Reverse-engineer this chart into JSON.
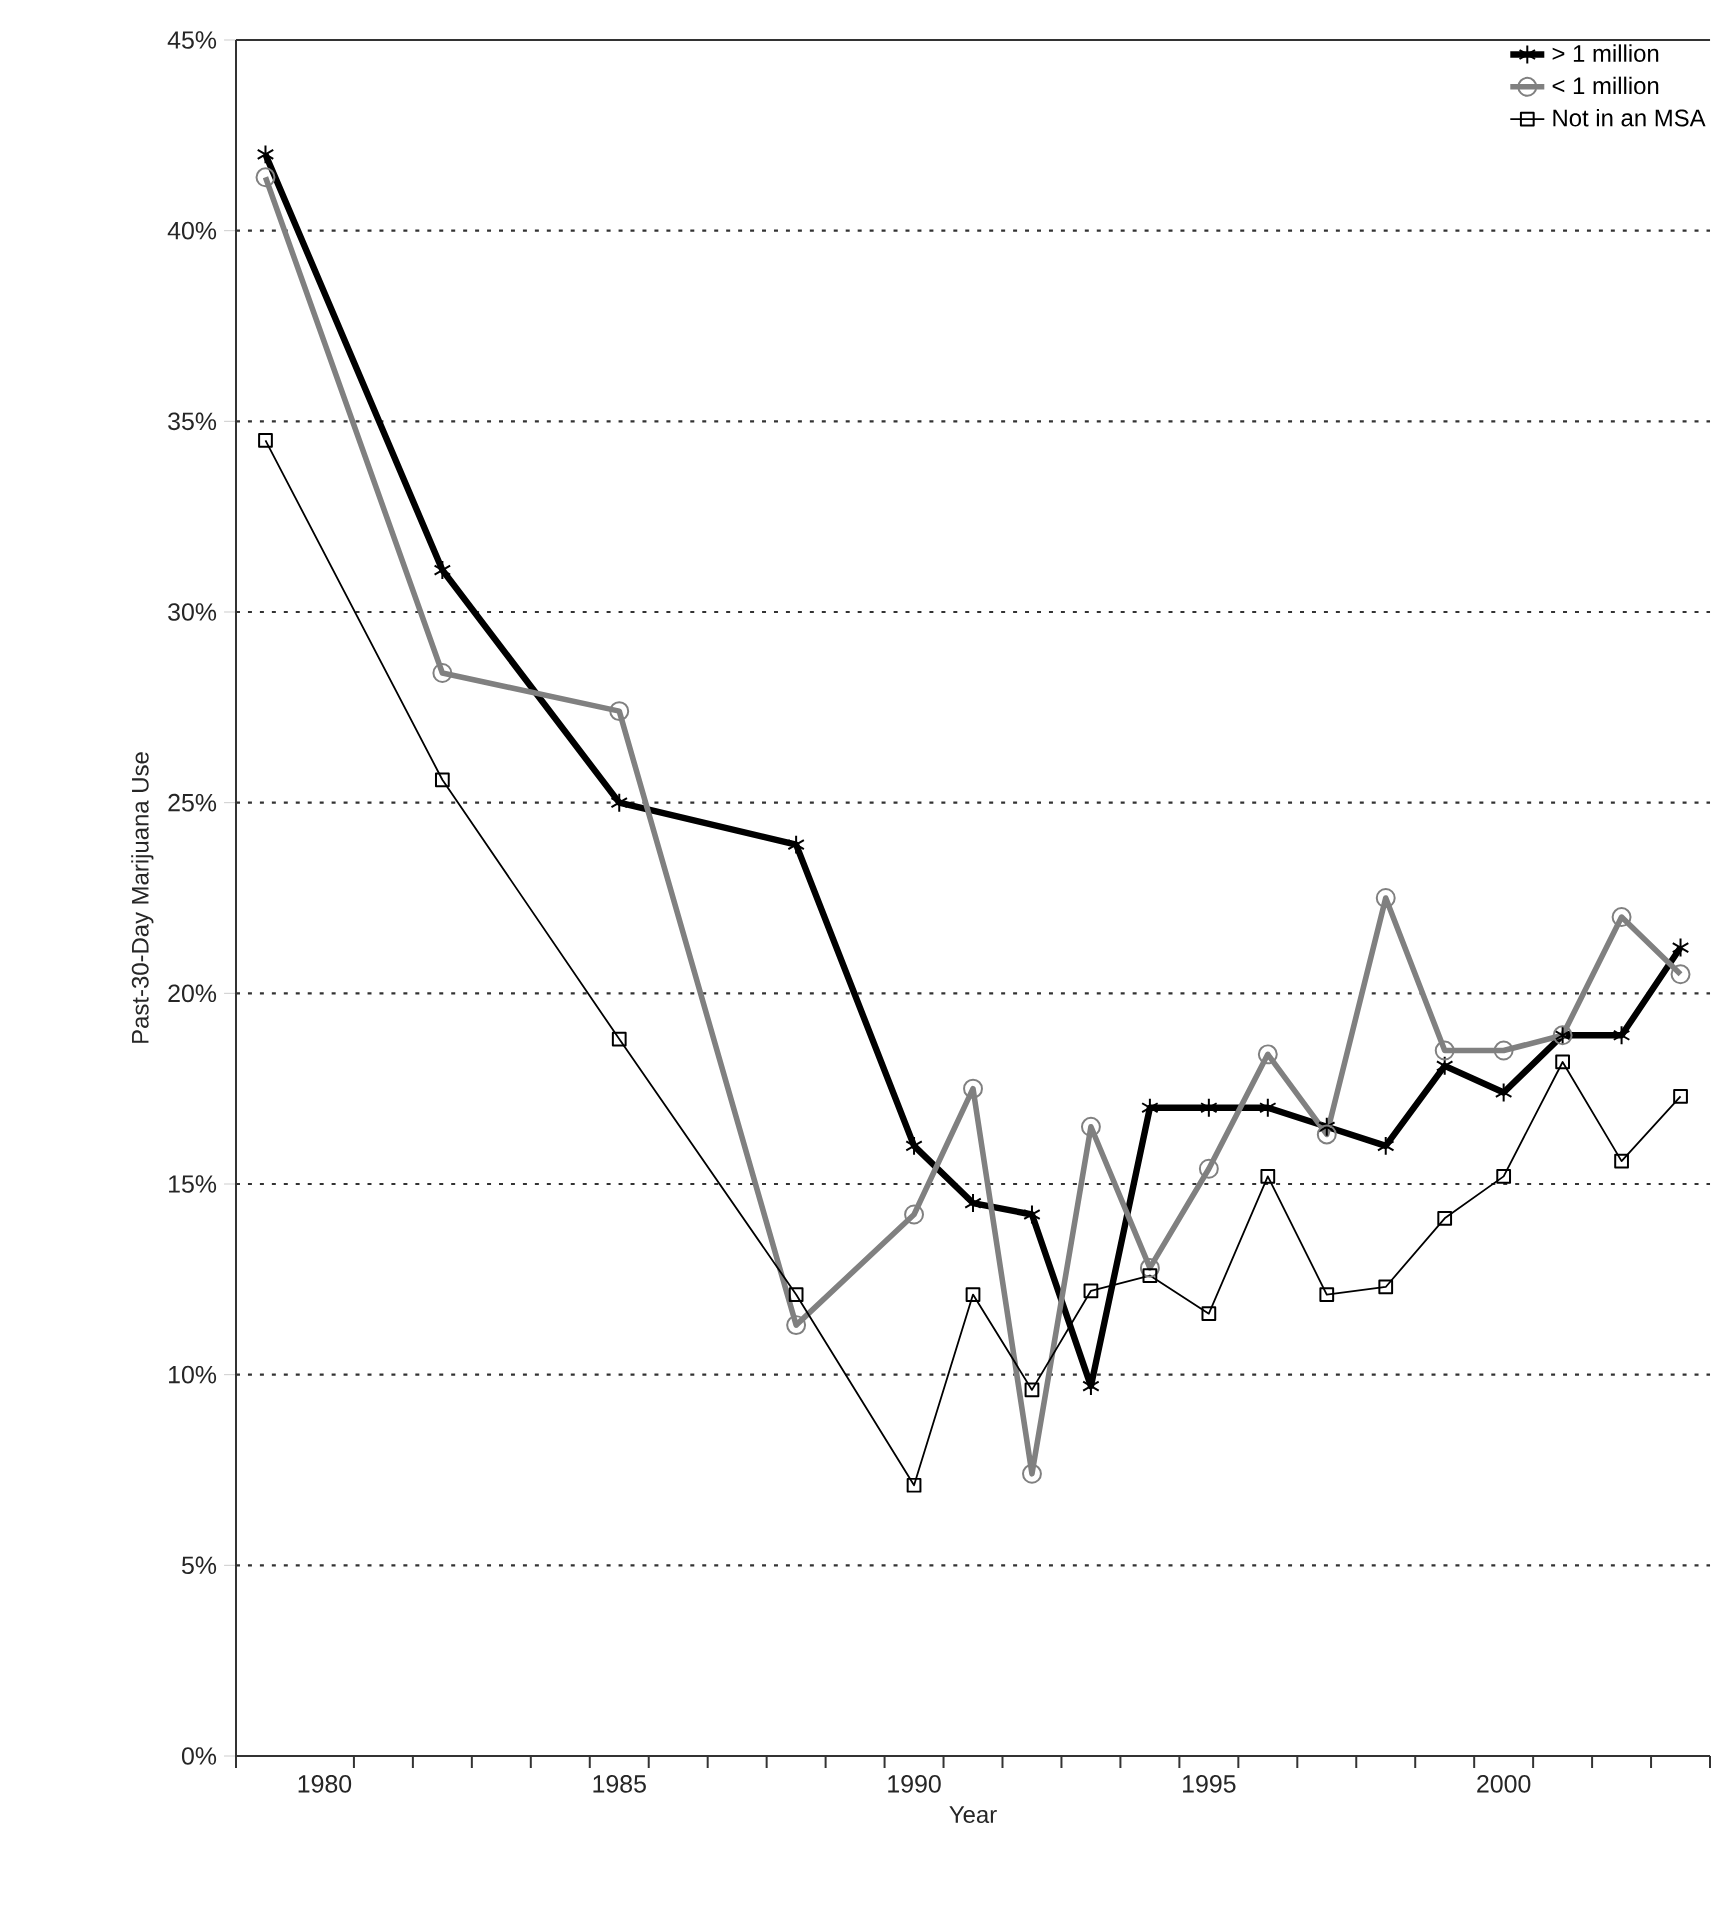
{
  "chart_data": {
    "type": "line",
    "xlabel": "Year",
    "ylabel": "Past-30-Day Marijuana Use",
    "x": [
      1979,
      1982,
      1985,
      1988,
      1990,
      1991,
      1992,
      1993,
      1994,
      1995,
      1996,
      1997,
      1998,
      1999,
      2000,
      2001,
      2002,
      2003
    ],
    "series": [
      {
        "name": "> 1 million",
        "color": "#000000",
        "marker": "cross",
        "values": [
          42.0,
          31.1,
          25.0,
          23.9,
          16.0,
          14.5,
          14.2,
          9.7,
          17.0,
          17.0,
          17.0,
          16.5,
          16.0,
          18.1,
          17.4,
          18.9,
          18.9,
          21.2
        ]
      },
      {
        "name": "< 1 million",
        "color": "#808080",
        "marker": "circle",
        "values": [
          41.4,
          28.4,
          27.4,
          11.3,
          14.2,
          17.5,
          7.4,
          16.5,
          12.8,
          15.4,
          18.4,
          16.3,
          22.5,
          18.5,
          18.5,
          18.9,
          22.0,
          20.5
        ]
      },
      {
        "name": "Not in an MSA",
        "color": "#000000",
        "marker": "square",
        "values": [
          34.5,
          25.6,
          18.8,
          12.1,
          7.1,
          12.1,
          9.6,
          12.2,
          12.6,
          11.6,
          15.2,
          12.1,
          12.3,
          14.1,
          15.2,
          18.2,
          15.6,
          17.3
        ]
      }
    ],
    "xlim": [
      1978.5,
      2003.5
    ],
    "xticks": [
      {
        "value": 1978.5,
        "label": null
      },
      1980,
      {
        "value": 1980.5,
        "label": null
      },
      {
        "value": 1981.5,
        "label": null
      },
      {
        "value": 1982.5,
        "label": null
      },
      {
        "value": 1983.5,
        "label": null
      },
      {
        "value": 1984.5,
        "label": null
      },
      1985,
      {
        "value": 1985.5,
        "label": null
      },
      {
        "value": 1986.5,
        "label": null
      },
      {
        "value": 1987.5,
        "label": null
      },
      {
        "value": 1988.5,
        "label": null
      },
      {
        "value": 1989.5,
        "label": null
      },
      1990,
      {
        "value": 1990.5,
        "label": null
      },
      {
        "value": 1991.5,
        "label": null
      },
      {
        "value": 1992.5,
        "label": null
      },
      {
        "value": 1993.5,
        "label": null
      },
      {
        "value": 1994.5,
        "label": null
      },
      1995,
      {
        "value": 1995.5,
        "label": null
      },
      {
        "value": 1996.5,
        "label": null
      },
      {
        "value": 1997.5,
        "label": null
      },
      {
        "value": 1998.5,
        "label": null
      },
      {
        "value": 1999.5,
        "label": null
      },
      2000,
      {
        "value": 2000.5,
        "label": null
      },
      {
        "value": 2001.5,
        "label": null
      },
      {
        "value": 2002.5,
        "label": null
      },
      {
        "value": 2003.5,
        "label": null
      }
    ],
    "ylim": [
      0,
      45
    ],
    "yticks": [
      {
        "value": 0,
        "label": "0%"
      },
      {
        "value": 5,
        "label": "5%"
      },
      {
        "value": 10,
        "label": "10%"
      },
      {
        "value": 15,
        "label": "15%"
      },
      {
        "value": 20,
        "label": "20%"
      },
      {
        "value": 25,
        "label": "25%"
      },
      {
        "value": 30,
        "label": "30%"
      },
      {
        "value": 35,
        "label": "35%"
      },
      {
        "value": 40,
        "label": "40%"
      },
      {
        "value": 45,
        "label": "45%"
      }
    ],
    "grid": "y",
    "legend": "top right",
    "line_style": "solid"
  }
}
